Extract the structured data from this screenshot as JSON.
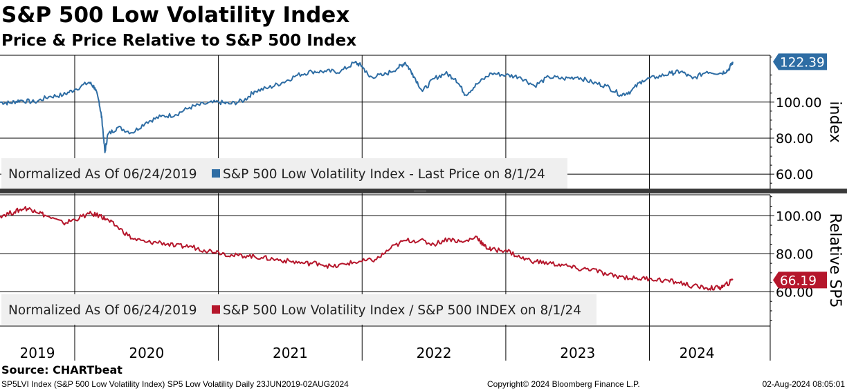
{
  "header": {
    "title": "S&P 500 Low Volatility Index",
    "subtitle": "Price & Price Relative to S&P 500 Index"
  },
  "footer": {
    "source": "Source: CHARTbeat",
    "ticker_info": "SP5LVI Index (S&P 500 Low Volatility Index) SP5 Low Volatility  Daily 23JUN2019-02AUG2024",
    "copyright": "Copyright© 2024 Bloomberg Finance L.P.",
    "timestamp": "02-Aug-2024 08:05:01"
  },
  "colors": {
    "price_line": "#2e6da4",
    "relative_line": "#b5162b",
    "legend_bg": "#efefef",
    "grid": "#000000"
  },
  "chart_data": [
    {
      "type": "line",
      "panel": "price",
      "axis_title": "index",
      "legend": {
        "prefix": "Normalized As Of 06/24/2019",
        "series_label": "S&P 500 Low Volatility Index  - Last Price on 8/1/24"
      },
      "last_value_label": "122.39",
      "last_value": 122.39,
      "yticks": [
        60,
        80,
        100
      ],
      "ytick_labels": [
        "60.00",
        "80.00",
        "100.00"
      ],
      "ylim": [
        52,
        126
      ],
      "xlim": [
        2019.48,
        2024.84
      ],
      "series": [
        {
          "values": [
            [
              2019.48,
              100
            ],
            [
              2019.55,
              99.5
            ],
            [
              2019.62,
              101
            ],
            [
              2019.72,
              100
            ],
            [
              2019.82,
              103
            ],
            [
              2019.92,
              104
            ],
            [
              2020.0,
              107
            ],
            [
              2020.1,
              111
            ],
            [
              2020.14,
              108
            ],
            [
              2020.17,
              100
            ],
            [
              2020.19,
              90
            ],
            [
              2020.21,
              72
            ],
            [
              2020.23,
              82
            ],
            [
              2020.3,
              86
            ],
            [
              2020.4,
              83
            ],
            [
              2020.5,
              89
            ],
            [
              2020.6,
              92
            ],
            [
              2020.7,
              93
            ],
            [
              2020.8,
              97
            ],
            [
              2020.9,
              99
            ],
            [
              2021.0,
              100
            ],
            [
              2021.08,
              99
            ],
            [
              2021.18,
              101
            ],
            [
              2021.25,
              106
            ],
            [
              2021.35,
              108
            ],
            [
              2021.45,
              111
            ],
            [
              2021.55,
              115
            ],
            [
              2021.65,
              117
            ],
            [
              2021.75,
              117
            ],
            [
              2021.85,
              117
            ],
            [
              2021.95,
              122
            ],
            [
              2022.0,
              120
            ],
            [
              2022.05,
              114
            ],
            [
              2022.15,
              115
            ],
            [
              2022.25,
              119
            ],
            [
              2022.3,
              122
            ],
            [
              2022.35,
              116
            ],
            [
              2022.42,
              106
            ],
            [
              2022.5,
              113
            ],
            [
              2022.58,
              116
            ],
            [
              2022.65,
              113
            ],
            [
              2022.72,
              104
            ],
            [
              2022.8,
              110
            ],
            [
              2022.9,
              116
            ],
            [
              2023.0,
              115
            ],
            [
              2023.1,
              114
            ],
            [
              2023.2,
              109
            ],
            [
              2023.3,
              114
            ],
            [
              2023.4,
              113
            ],
            [
              2023.5,
              114
            ],
            [
              2023.6,
              111
            ],
            [
              2023.7,
              109
            ],
            [
              2023.8,
              104
            ],
            [
              2023.87,
              106
            ],
            [
              2023.95,
              112
            ],
            [
              2024.05,
              114
            ],
            [
              2024.15,
              116
            ],
            [
              2024.22,
              117
            ],
            [
              2024.3,
              113
            ],
            [
              2024.4,
              117
            ],
            [
              2024.5,
              116
            ],
            [
              2024.55,
              118
            ],
            [
              2024.58,
              122.39
            ]
          ]
        }
      ]
    },
    {
      "type": "line",
      "panel": "relative",
      "axis_title": "Relative SP5",
      "legend": {
        "prefix": "Normalized As Of 06/24/2019",
        "series_label": "S&P 500 Low Volatility Index / S&P 500 INDEX on 8/1/24"
      },
      "last_value_label": "66.19",
      "last_value": 66.19,
      "yticks": [
        60,
        80,
        100
      ],
      "ytick_labels": [
        "60.00",
        "80.00",
        "100.00"
      ],
      "ylim": [
        42,
        111
      ],
      "xlim": [
        2019.48,
        2024.84
      ],
      "series": [
        {
          "values": [
            [
              2019.48,
              100
            ],
            [
              2019.58,
              102
            ],
            [
              2019.65,
              104
            ],
            [
              2019.72,
              103
            ],
            [
              2019.8,
              100
            ],
            [
              2019.92,
              96
            ],
            [
              2020.0,
              98
            ],
            [
              2020.1,
              101
            ],
            [
              2020.18,
              100
            ],
            [
              2020.22,
              98
            ],
            [
              2020.3,
              94
            ],
            [
              2020.4,
              88
            ],
            [
              2020.5,
              86
            ],
            [
              2020.6,
              86
            ],
            [
              2020.7,
              84
            ],
            [
              2020.8,
              84
            ],
            [
              2020.9,
              82
            ],
            [
              2021.0,
              81
            ],
            [
              2021.1,
              79
            ],
            [
              2021.2,
              79
            ],
            [
              2021.3,
              78
            ],
            [
              2021.4,
              77
            ],
            [
              2021.5,
              76
            ],
            [
              2021.6,
              75
            ],
            [
              2021.7,
              75
            ],
            [
              2021.8,
              73
            ],
            [
              2021.9,
              75
            ],
            [
              2022.0,
              76
            ],
            [
              2022.1,
              77
            ],
            [
              2022.2,
              83
            ],
            [
              2022.3,
              87
            ],
            [
              2022.4,
              87
            ],
            [
              2022.5,
              85
            ],
            [
              2022.6,
              88
            ],
            [
              2022.7,
              86
            ],
            [
              2022.8,
              89
            ],
            [
              2022.85,
              84
            ],
            [
              2022.9,
              82
            ],
            [
              2023.0,
              82
            ],
            [
              2023.1,
              78
            ],
            [
              2023.2,
              76
            ],
            [
              2023.3,
              75
            ],
            [
              2023.4,
              74
            ],
            [
              2023.5,
              72
            ],
            [
              2023.6,
              72
            ],
            [
              2023.7,
              69
            ],
            [
              2023.8,
              68
            ],
            [
              2023.9,
              67
            ],
            [
              2024.0,
              67
            ],
            [
              2024.1,
              66
            ],
            [
              2024.2,
              65
            ],
            [
              2024.3,
              63
            ],
            [
              2024.4,
              62
            ],
            [
              2024.48,
              62
            ],
            [
              2024.52,
              63
            ],
            [
              2024.58,
              66.19
            ]
          ]
        }
      ]
    }
  ],
  "xaxis": {
    "years": [
      "2019",
      "2020",
      "2021",
      "2022",
      "2023",
      "2024"
    ],
    "year_starts": [
      2020,
      2021,
      2022,
      2023,
      2024
    ],
    "label_positions": [
      2019.74,
      2020.5,
      2021.5,
      2022.5,
      2023.5,
      2024.33
    ]
  }
}
